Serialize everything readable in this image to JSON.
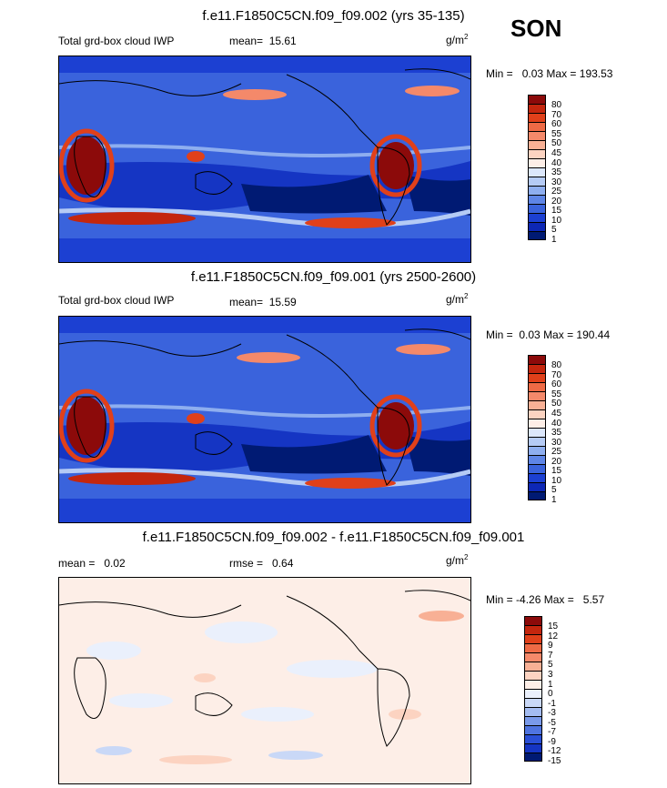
{
  "season": "SON",
  "units": "g/m",
  "units_exp": "2",
  "panels": [
    {
      "title": "f.e11.F1850C5CN.f09_f09.002 (yrs 35-135)",
      "left_label": "Total grd-box cloud IWP",
      "stat_label": "mean=",
      "stat_value": "15.61",
      "min_label": "Min =",
      "min_value": "0.03",
      "max_label": "Max =",
      "max_value": "193.53",
      "levels": [
        "80",
        "70",
        "60",
        "55",
        "50",
        "45",
        "40",
        "35",
        "30",
        "25",
        "20",
        "15",
        "10",
        "5",
        "1"
      ],
      "colors": [
        "#8c0a0a",
        "#c4260e",
        "#e0401a",
        "#ee6a45",
        "#f4896a",
        "#f8b095",
        "#fcd3c1",
        "#fdeee7",
        "#dce7fb",
        "#b5cbf5",
        "#8eaeef",
        "#5e85e6",
        "#3a63dc",
        "#1c40d2",
        "#0d27b5",
        "#001a73"
      ]
    },
    {
      "title": "f.e11.F1850C5CN.f09_f09.001 (yrs 2500-2600)",
      "left_label": "Total grd-box cloud IWP",
      "stat_label": "mean=",
      "stat_value": "15.59",
      "min_label": "Min =",
      "min_value": "0.03",
      "max_label": "Max =",
      "max_value": "190.44",
      "levels": [
        "80",
        "70",
        "60",
        "55",
        "50",
        "45",
        "40",
        "35",
        "30",
        "25",
        "20",
        "15",
        "10",
        "5",
        "1"
      ],
      "colors": [
        "#8c0a0a",
        "#c4260e",
        "#e0401a",
        "#ee6a45",
        "#f4896a",
        "#f8b095",
        "#fcd3c1",
        "#fdeee7",
        "#dce7fb",
        "#b5cbf5",
        "#8eaeef",
        "#5e85e6",
        "#3a63dc",
        "#1c40d2",
        "#0d27b5",
        "#001a73"
      ]
    },
    {
      "title": "f.e11.F1850C5CN.f09_f09.002 - f.e11.F1850C5CN.f09_f09.001",
      "left_label": "mean =",
      "left_value": "0.02",
      "stat_label": "rmse =",
      "stat_value": "0.64",
      "min_label": "Min =",
      "min_value": "-4.26",
      "max_label": "Max =",
      "max_value": "5.57",
      "levels": [
        "15",
        "12",
        "9",
        "7",
        "5",
        "3",
        "1",
        "0",
        "-1",
        "-3",
        "-5",
        "-7",
        "-9",
        "-12",
        "-15"
      ],
      "colors": [
        "#8c0a0a",
        "#c4260e",
        "#e0401a",
        "#ee6a45",
        "#f4896a",
        "#f8b095",
        "#fcd3c1",
        "#fdeee7",
        "#eaf0fc",
        "#c9d8f7",
        "#a4bcf1",
        "#7a9aea",
        "#4f74e0",
        "#2a4fd6",
        "#1535c3",
        "#001a73"
      ]
    }
  ]
}
